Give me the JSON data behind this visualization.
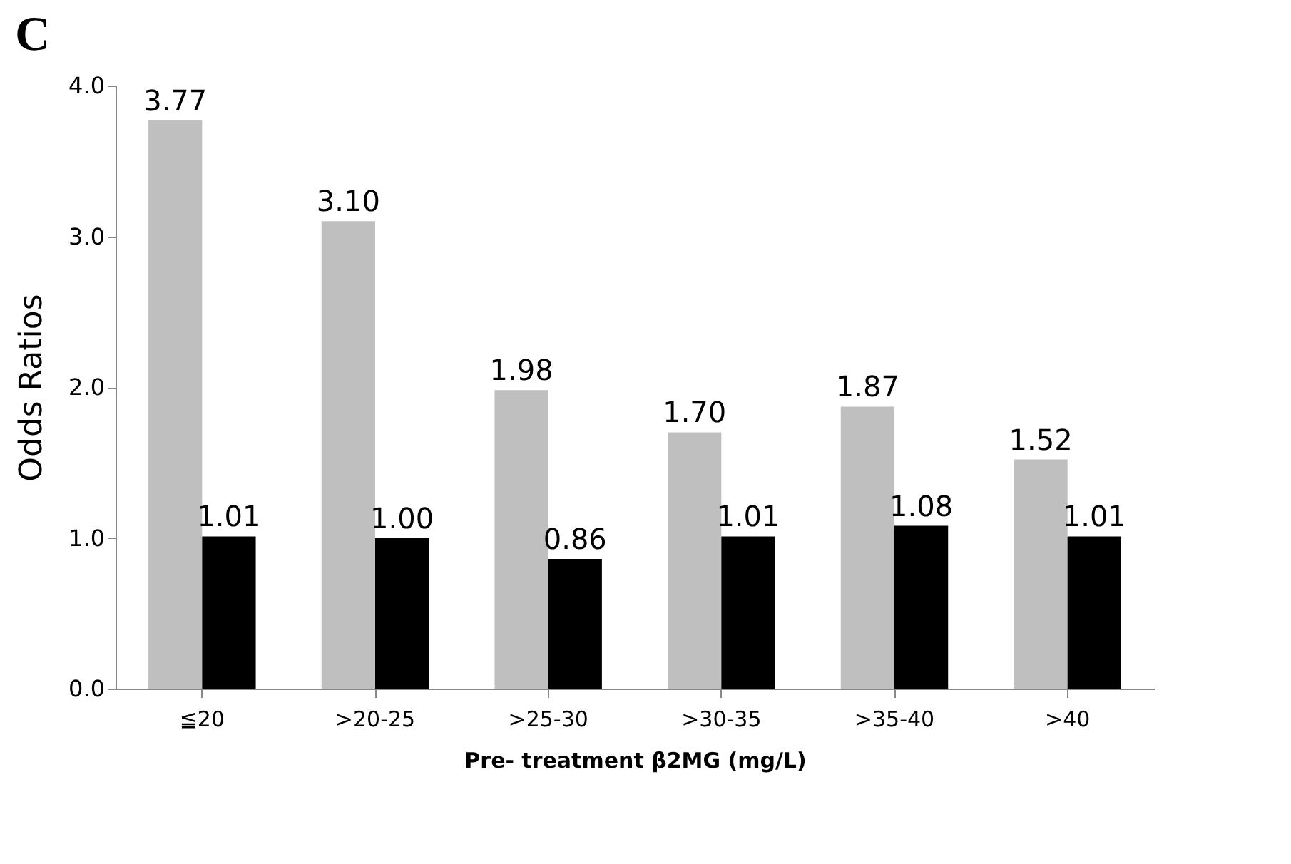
{
  "chart_data": {
    "type": "bar",
    "title": "C",
    "xlabel": "Pre- treatment β2MG (mg/L)",
    "ylabel": "Odds Ratios",
    "categories": [
      "≦20",
      ">20-25",
      ">25-30",
      ">30-35",
      ">35-40",
      ">40"
    ],
    "series": [
      {
        "color": "#bfbfbf",
        "values": [
          3.77,
          3.1,
          1.98,
          1.7,
          1.87,
          1.52
        ],
        "value_labels": [
          "3.77",
          "3.10",
          "1.98",
          "1.70",
          "1.87",
          "1.52"
        ]
      },
      {
        "color": "#000000",
        "values": [
          1.01,
          1.0,
          0.86,
          1.01,
          1.08,
          1.01
        ],
        "value_labels": [
          "1.01",
          "1.00",
          "0.86",
          "1.01",
          "1.08",
          "1.01"
        ]
      }
    ],
    "ylim": [
      0,
      4
    ],
    "yticks": [
      {
        "value": 0,
        "label": "0.0"
      },
      {
        "value": 1,
        "label": "1.0"
      },
      {
        "value": 2,
        "label": "2.0"
      },
      {
        "value": 3,
        "label": "3.0"
      },
      {
        "value": 4,
        "label": "4.0"
      }
    ],
    "grid": false,
    "legend": false
  }
}
